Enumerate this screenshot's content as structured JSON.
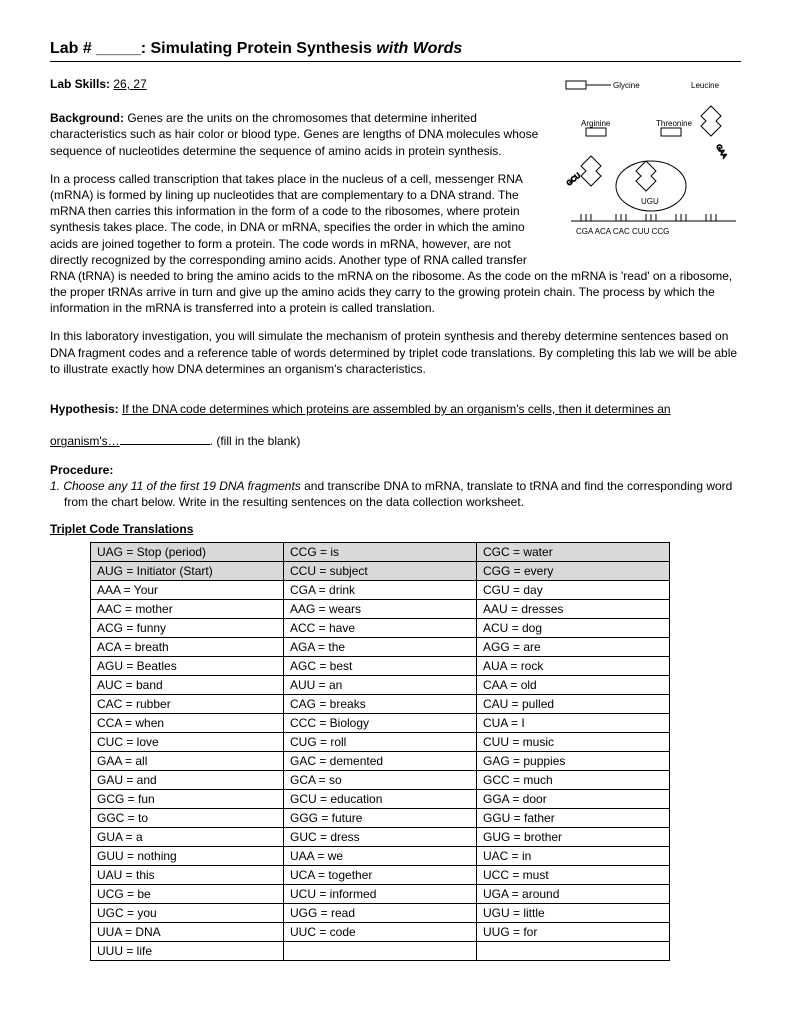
{
  "title_prefix": "Lab # _____: ",
  "title_main": "Simulating Protein Synthesis ",
  "title_italic": "with Words",
  "labskills_label": "Lab Skills:",
  "labskills_value": "26, 27",
  "bg_label": "Background:",
  "bg_p1": " Genes are the units on the chromosomes that determine inherited characteristics such as hair color or blood type.  Genes are lengths of DNA molecules whose sequence of nucleotides determine the sequence of amino acids in protein synthesis.",
  "bg_p2": "In a process called transcription that takes place in the nucleus of a cell, messenger RNA (mRNA) is formed by lining up nucleotides that are complementary to a DNA strand.  The mRNA then carries this information in the form of a code to the ribosomes, where protein synthesis takes place.  The code, in DNA or mRNA, specifies the order in which the amino acids are joined together to form a protein.  The code words in mRNA, however, are not directly recognized by the corresponding amino acids.  Another type of RNA called transfer RNA (tRNA) is needed to bring the amino acids to the mRNA on the ribosome.  As the code on the mRNA is 'read' on a ribosome, the proper tRNAs arrive in turn and give up the amino acids they carry to the growing protein chain.  The process by which the information in the mRNA is transferred into a protein is called translation.",
  "bg_p3": "In this laboratory investigation, you will simulate the mechanism of protein synthesis and thereby determine sentences based on DNA fragment codes and a reference table of words determined by triplet code translations.  By completing this lab we will be able to illustrate exactly how DNA determines an organism's characteristics.",
  "hyp_label": "Hypothesis:",
  "hyp_line1": "If the DNA code determines which proteins are assembled by an organism's cells, then it determines an",
  "hyp_line2a": "organism's…",
  "hyp_line2b": ".  (fill in the blank)",
  "proc_label": "Procedure:",
  "proc_1a": "1.  Choose any 11 of the first 19 DNA fragments",
  "proc_1b": " and transcribe DNA to mRNA, translate to tRNA and find the corresponding word from the chart below.  Write in the resulting sentences on the data collection worksheet.",
  "table_title": "Triplet Code Translations",
  "rows": [
    {
      "c1": "UAG = Stop (period)",
      "c2": "CCG = is",
      "c3": "CGC = water",
      "shade": true
    },
    {
      "c1": "AUG = Initiator (Start)",
      "c2": "CCU = subject",
      "c3": "CGG = every",
      "shade": true
    },
    {
      "c1": "AAA = Your",
      "c2": "CGA = drink",
      "c3": "CGU = day"
    },
    {
      "c1": "AAC = mother",
      "c2": "AAG = wears",
      "c3": "AAU = dresses"
    },
    {
      "c1": "ACG = funny",
      "c2": "ACC = have",
      "c3": "ACU = dog"
    },
    {
      "c1": "ACA = breath",
      "c2": "AGA = the",
      "c3": "AGG = are"
    },
    {
      "c1": "AGU = Beatles",
      "c2": "AGC = best",
      "c3": "AUA = rock"
    },
    {
      "c1": "AUC = band",
      "c2": "AUU = an",
      "c3": "CAA = old"
    },
    {
      "c1": "CAC = rubber",
      "c2": "CAG = breaks",
      "c3": "CAU = pulled"
    },
    {
      "c1": "CCA = when",
      "c2": "CCC = Biology",
      "c3": "CUA = I"
    },
    {
      "c1": "CUC = love",
      "c2": "CUG = roll",
      "c3": "CUU = music"
    },
    {
      "c1": "GAA = all",
      "c2": "GAC = demented",
      "c3": "GAG = puppies"
    },
    {
      "c1": "GAU = and",
      "c2": "GCA = so",
      "c3": "GCC = much"
    },
    {
      "c1": "GCG = fun",
      "c2": "GCU = education",
      "c3": "GGA = door"
    },
    {
      "c1": "GGC = to",
      "c2": "GGG = future",
      "c3": "GGU = father"
    },
    {
      "c1": "GUA = a",
      "c2": "GUC = dress",
      "c3": "GUG = brother"
    },
    {
      "c1": "GUU = nothing",
      "c2": "UAA = we",
      "c3": "UAC = in"
    },
    {
      "c1": "UAU = this",
      "c2": "UCA = together",
      "c3": "UCC = must"
    },
    {
      "c1": "UCG = be",
      "c2": "UCU = informed",
      "c3": "UGA = around"
    },
    {
      "c1": "UGC = you",
      "c2": "UGG = read",
      "c3": "UGU = little"
    },
    {
      "c1": "UUA = DNA",
      "c2": "UUC = code",
      "c3": "UUG = for"
    },
    {
      "c1": "UUU = life",
      "c2": "",
      "c3": ""
    }
  ],
  "diagram_labels": {
    "gly": "Glycine",
    "leu": "Leucine",
    "arg": "Arginine",
    "thr": "Threonine",
    "gcu": "GCU",
    "ugu": "UGU",
    "gaa": "GAA",
    "codons": "CGA  ACA  CAC  CUU  CCG"
  }
}
